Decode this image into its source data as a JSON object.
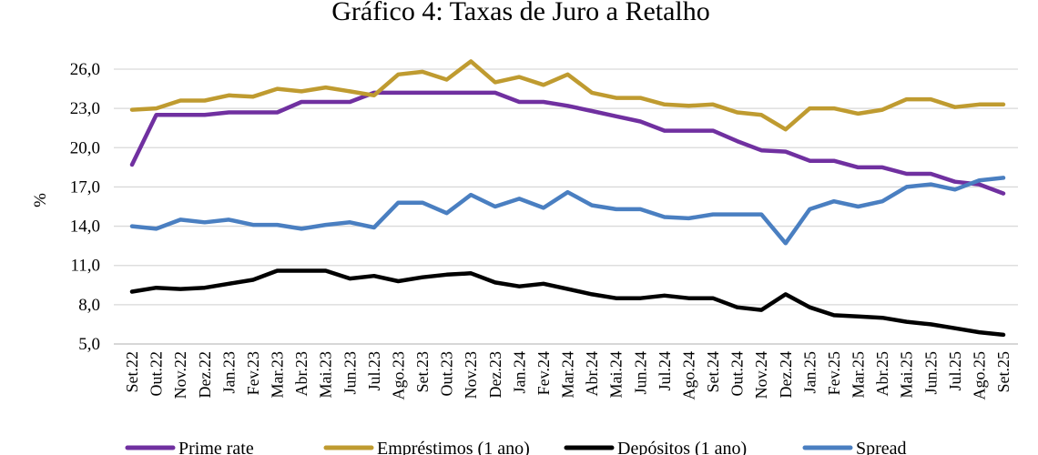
{
  "chart_data": {
    "type": "line",
    "title": "Gráfico 4: Taxas de Juro a Retalho",
    "ylabel": "%",
    "xlabel": "",
    "ylim": [
      5.0,
      26.0
    ],
    "yticks": [
      "5,0",
      "8,0",
      "11,0",
      "14,0",
      "17,0",
      "20,0",
      "23,0",
      "26,0"
    ],
    "ytick_values": [
      5,
      8,
      11,
      14,
      17,
      20,
      23,
      26
    ],
    "grid": true,
    "legend_position": "bottom",
    "categories": [
      "Set.22",
      "Out.22",
      "Nov.22",
      "Dez.22",
      "Jan.23",
      "Fev.23",
      "Mar.23",
      "Abr.23",
      "Mai.23",
      "Jun.23",
      "Jul.23",
      "Ago.23",
      "Set.23",
      "Out.23",
      "Nov.23",
      "Dez.23",
      "Jan.24",
      "Fev.24",
      "Mar.24",
      "Abr.24",
      "Mai.24",
      "Jun.24",
      "Jul.24",
      "Ago.24",
      "Set.24",
      "Out.24",
      "Nov.24",
      "Dez.24",
      "Jan.25",
      "Fev.25",
      "Mar.25",
      "Abr.25",
      "Mai.25",
      "Jun.25",
      "Jul.25",
      "Ago.25",
      "Set.25"
    ],
    "series": [
      {
        "name": "Prime rate",
        "color": "#7030a0",
        "values": [
          18.7,
          22.5,
          22.5,
          22.5,
          22.7,
          22.7,
          22.7,
          23.5,
          23.5,
          23.5,
          24.2,
          24.2,
          24.2,
          24.2,
          24.2,
          24.2,
          23.5,
          23.5,
          23.2,
          22.8,
          22.4,
          22.0,
          21.3,
          21.3,
          21.3,
          20.5,
          19.8,
          19.7,
          19.0,
          19.0,
          18.5,
          18.5,
          18.0,
          18.0,
          17.4,
          17.2,
          16.5
        ]
      },
      {
        "name": "Empréstimos (1 ano)",
        "color": "#bf9b30",
        "values": [
          22.9,
          23.0,
          23.6,
          23.6,
          24.0,
          23.9,
          24.5,
          24.3,
          24.6,
          24.3,
          24.0,
          25.6,
          25.8,
          25.2,
          26.6,
          25.0,
          25.4,
          24.8,
          25.6,
          24.2,
          23.8,
          23.8,
          23.3,
          23.2,
          23.3,
          22.7,
          22.5,
          21.4,
          23.0,
          23.0,
          22.6,
          22.9,
          23.7,
          23.7,
          23.1,
          23.3,
          23.3
        ]
      },
      {
        "name": "Depósitos (1 ano)",
        "color": "#000000",
        "values": [
          9.0,
          9.3,
          9.2,
          9.3,
          9.6,
          9.9,
          10.6,
          10.6,
          10.6,
          10.0,
          10.2,
          9.8,
          10.1,
          10.3,
          10.4,
          9.7,
          9.4,
          9.6,
          9.2,
          8.8,
          8.5,
          8.5,
          8.7,
          8.5,
          8.5,
          7.8,
          7.6,
          8.8,
          7.8,
          7.2,
          7.1,
          7.0,
          6.7,
          6.5,
          6.2,
          5.9,
          5.7
        ]
      },
      {
        "name": "Spread",
        "color": "#4a7fc1",
        "values": [
          14.0,
          13.8,
          14.5,
          14.3,
          14.5,
          14.1,
          14.1,
          13.8,
          14.1,
          14.3,
          13.9,
          15.8,
          15.8,
          15.0,
          16.4,
          15.5,
          16.1,
          15.4,
          16.6,
          15.6,
          15.3,
          15.3,
          14.7,
          14.6,
          14.9,
          14.9,
          14.9,
          12.7,
          15.3,
          15.9,
          15.5,
          15.9,
          17.0,
          17.2,
          16.8,
          17.5,
          17.7
        ]
      }
    ]
  }
}
